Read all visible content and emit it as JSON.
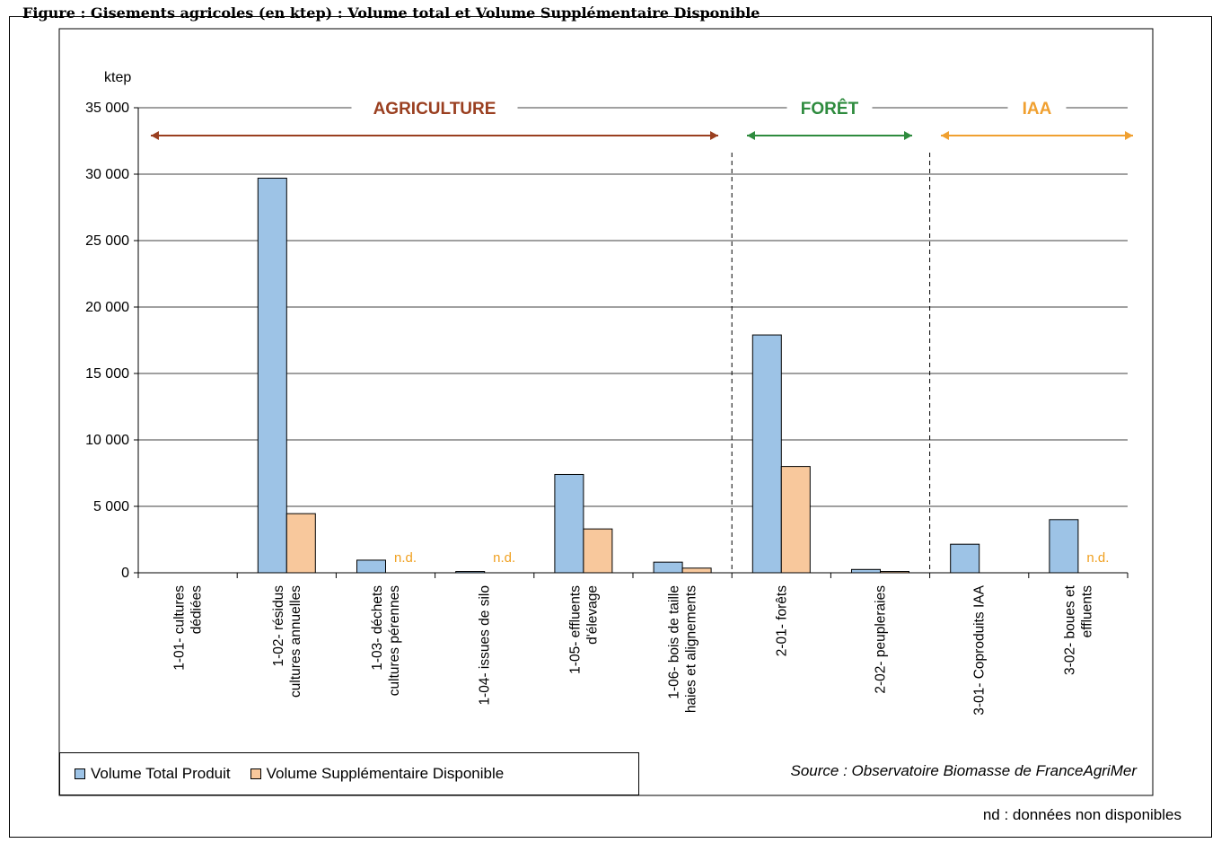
{
  "header": {
    "caption": "Figure : Gisements agricoles (en ktep) : Volume total et Volume Supplémentaire Disponible"
  },
  "chart_data": {
    "type": "bar",
    "ylabel": "ktep",
    "ylim": [
      0,
      35000
    ],
    "yticks": [
      0,
      5000,
      10000,
      15000,
      20000,
      25000,
      30000,
      35000
    ],
    "ytick_labels": [
      "0",
      "5 000",
      "10 000",
      "15 000",
      "20 000",
      "25 000",
      "30 000",
      "35 000"
    ],
    "grid": true,
    "legend_position": "bottom-left",
    "categories": [
      [
        "1-01- cultures",
        "dédiées"
      ],
      [
        "1-02- résidus",
        "cultures annuelles"
      ],
      [
        "1-03- déchets",
        "cultures pérennes"
      ],
      [
        "1-04- issues de silo"
      ],
      [
        "1-05- effluents",
        "d'élevage"
      ],
      [
        "1-06- bois de taille",
        "haies et alignements"
      ],
      [
        "2-01- forêts"
      ],
      [
        "2-02- peupleraies"
      ],
      [
        "3-01- Coproduits IAA"
      ],
      [
        "3-02- boues et",
        "effluents"
      ]
    ],
    "series": [
      {
        "name": "Volume Total Produit",
        "color": "#9dc3e6",
        "values": [
          0,
          29700,
          950,
          100,
          7400,
          800,
          17900,
          250,
          2150,
          4000
        ]
      },
      {
        "name": "Volume Supplémentaire Disponible",
        "color": "#f8c89c",
        "values": [
          0,
          4450,
          null,
          null,
          3300,
          350,
          8000,
          100,
          0,
          null
        ]
      }
    ],
    "not_available_label": "n.d.",
    "not_available_categories": [
      2,
      3,
      9
    ],
    "sectors": [
      {
        "label": "AGRICULTURE",
        "color": "#9a3f20",
        "categories": [
          0,
          5
        ]
      },
      {
        "label": "FORÊT",
        "color": "#2e8b3e",
        "categories": [
          6,
          7
        ]
      },
      {
        "label": "IAA",
        "color": "#f0a030",
        "categories": [
          8,
          9
        ]
      }
    ]
  },
  "legend": {
    "total_label": "Volume Total Produit",
    "supp_label": "Volume Supplémentaire Disponible",
    "total_color": "#9dc3e6",
    "supp_color": "#f8c89c"
  },
  "source": "Source : Observatoire Biomasse de FranceAgriMer",
  "footnote": "nd : données non disponibles"
}
